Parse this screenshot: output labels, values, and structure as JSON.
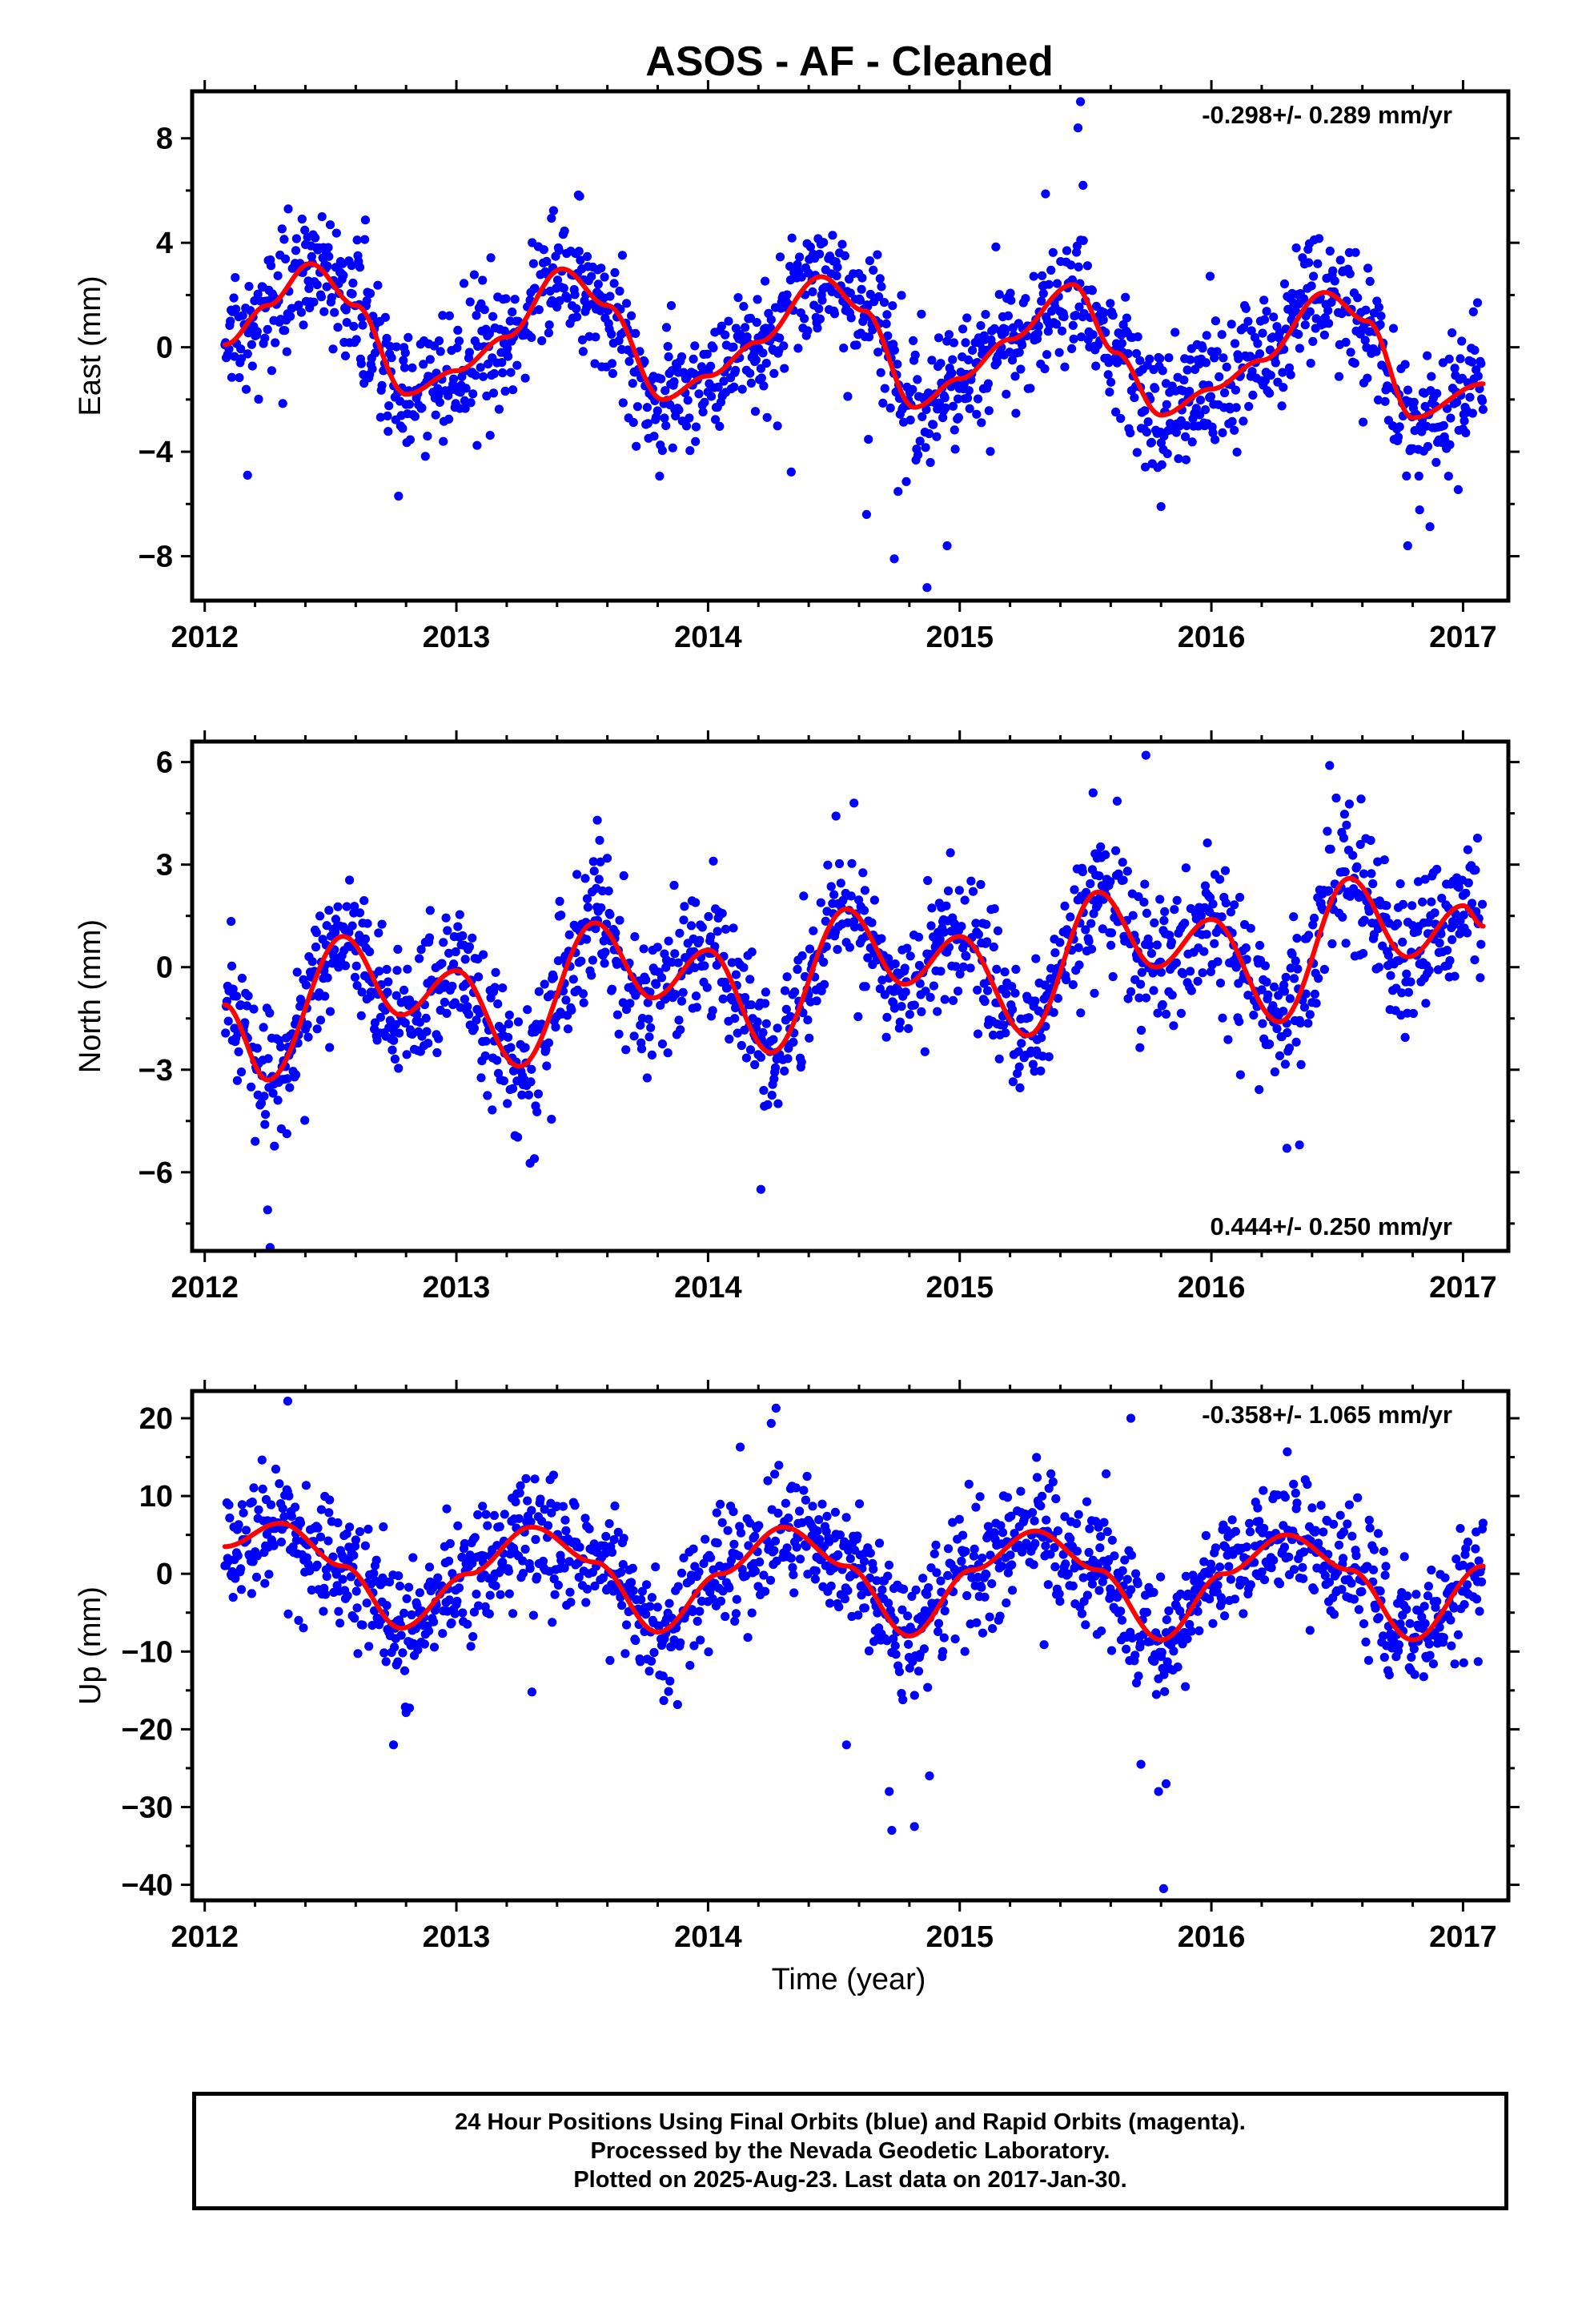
{
  "colors": {
    "points": "#0000ff",
    "fit": "#ff0000",
    "frame": "#000000"
  },
  "footer": {
    "line1": "24 Hour Positions Using Final Orbits (blue) and Rapid Orbits (magenta).",
    "line2": "Processed by the Nevada Geodetic Laboratory.",
    "line3": "Plotted on 2025-Aug-23. Last data on 2017-Jan-30."
  },
  "chart_data": [
    {
      "type": "scatter",
      "title": "ASOS  - AF - Cleaned",
      "xlabel": "",
      "ylabel": "East (mm)",
      "xlim": [
        2011.95,
        2017.18
      ],
      "ylim": [
        -9.7,
        9.8
      ],
      "xticks": [
        2012,
        2013,
        2014,
        2015,
        2016,
        2017
      ],
      "yticks": [
        -8,
        -4,
        0,
        4,
        8
      ],
      "annotation": "-0.298+/- 0.289 mm/yr",
      "annotation_position": "top-right",
      "rate_mm_per_yr": -0.298,
      "data_range": [
        2012.08,
        2017.08
      ],
      "scatter_sd": 1.2,
      "fit_curve": {
        "x": [
          2012.08,
          2012.25,
          2012.42,
          2012.6,
          2012.8,
          2013.0,
          2013.2,
          2013.42,
          2013.6,
          2013.82,
          2014.0,
          2014.2,
          2014.45,
          2014.62,
          2014.82,
          2015.0,
          2015.2,
          2015.45,
          2015.62,
          2015.8,
          2016.0,
          2016.2,
          2016.45,
          2016.62,
          2016.8,
          2017.08
        ],
        "y": [
          0.1,
          1.6,
          3.2,
          1.6,
          -1.8,
          -0.9,
          0.4,
          3.0,
          1.6,
          -2.0,
          -1.1,
          0.2,
          2.7,
          1.4,
          -2.3,
          -1.2,
          0.3,
          2.4,
          -0.2,
          -2.6,
          -1.6,
          -0.5,
          2.1,
          1.0,
          -2.7,
          -1.4
        ]
      },
      "outliers": [
        {
          "x": 2015.48,
          "y": 9.4
        },
        {
          "x": 2015.47,
          "y": 8.4
        },
        {
          "x": 2014.87,
          "y": -9.2
        },
        {
          "x": 2014.74,
          "y": -8.1
        },
        {
          "x": 2014.95,
          "y": -7.6
        },
        {
          "x": 2015.8,
          "y": -6.1
        },
        {
          "x": 2012.17,
          "y": -4.9
        },
        {
          "x": 2012.77,
          "y": -5.7
        },
        {
          "x": 2016.78,
          "y": -7.6
        },
        {
          "x": 2015.49,
          "y": 6.2
        },
        {
          "x": 2014.63,
          "y": -6.4
        }
      ]
    },
    {
      "type": "scatter",
      "title": "",
      "xlabel": "",
      "ylabel": "North (mm)",
      "xlim": [
        2011.95,
        2017.18
      ],
      "ylim": [
        -8.3,
        6.6
      ],
      "xticks": [
        2012,
        2013,
        2014,
        2015,
        2016,
        2017
      ],
      "yticks": [
        -6,
        -3,
        0,
        3,
        6
      ],
      "annotation": "0.444+/- 0.250 mm/yr",
      "annotation_position": "bottom-right",
      "rate_mm_per_yr": 0.444,
      "data_range": [
        2012.08,
        2017.08
      ],
      "scatter_sd": 1.0,
      "fit_curve": {
        "x": [
          2012.08,
          2012.25,
          2012.55,
          2012.78,
          2013.0,
          2013.25,
          2013.55,
          2013.78,
          2014.0,
          2014.25,
          2014.55,
          2014.78,
          2015.0,
          2015.27,
          2015.55,
          2015.78,
          2016.0,
          2016.27,
          2016.55,
          2016.78,
          2017.0,
          2017.08
        ],
        "y": [
          -1.1,
          -3.3,
          0.9,
          -1.4,
          -0.1,
          -2.9,
          1.3,
          -0.9,
          0.5,
          -2.5,
          1.7,
          -0.5,
          0.9,
          -2.0,
          2.2,
          0.0,
          1.4,
          -1.6,
          2.6,
          0.3,
          1.8,
          1.2
        ]
      },
      "outliers": [
        {
          "x": 2012.26,
          "y": -8.2
        },
        {
          "x": 2012.25,
          "y": -7.1
        },
        {
          "x": 2013.31,
          "y": -5.6
        },
        {
          "x": 2014.21,
          "y": -6.5
        },
        {
          "x": 2015.74,
          "y": 6.2
        },
        {
          "x": 2016.47,
          "y": 5.9
        },
        {
          "x": 2016.3,
          "y": -5.3
        },
        {
          "x": 2016.35,
          "y": -5.2
        },
        {
          "x": 2013.56,
          "y": 4.3
        },
        {
          "x": 2014.58,
          "y": 4.8
        },
        {
          "x": 2015.53,
          "y": 5.1
        }
      ]
    },
    {
      "type": "scatter",
      "title": "",
      "xlabel": "Time (year)",
      "ylabel": "Up (mm)",
      "xlim": [
        2011.95,
        2017.18
      ],
      "ylim": [
        -42,
        23.5
      ],
      "xticks": [
        2012,
        2013,
        2014,
        2015,
        2016,
        2017
      ],
      "yticks": [
        -40,
        -30,
        -20,
        -10,
        0,
        10,
        20
      ],
      "annotation": "-0.358+/- 1.065 mm/yr",
      "annotation_position": "top-right",
      "rate_mm_per_yr": -0.358,
      "data_range": [
        2012.08,
        2017.08
      ],
      "scatter_sd": 4.0,
      "fit_curve": {
        "x": [
          2012.08,
          2012.3,
          2012.55,
          2012.78,
          2013.05,
          2013.3,
          2013.55,
          2013.8,
          2014.05,
          2014.3,
          2014.55,
          2014.8,
          2015.05,
          2015.3,
          2015.55,
          2015.8,
          2016.05,
          2016.3,
          2016.55,
          2016.8,
          2017.08
        ],
        "y": [
          3.5,
          6.5,
          1.0,
          -7.0,
          0.0,
          6.0,
          1.5,
          -7.5,
          0.0,
          6.0,
          1.0,
          -8.0,
          0.5,
          5.5,
          0.5,
          -8.5,
          0.0,
          5.0,
          0.5,
          -8.5,
          1.0
        ]
      },
      "outliers": [
        {
          "x": 2015.81,
          "y": -40.5
        },
        {
          "x": 2014.73,
          "y": -33.0
        },
        {
          "x": 2014.82,
          "y": -32.5
        },
        {
          "x": 2015.72,
          "y": -24.5
        },
        {
          "x": 2015.79,
          "y": -28.0
        },
        {
          "x": 2015.82,
          "y": -27.0
        },
        {
          "x": 2012.75,
          "y": -22.0
        },
        {
          "x": 2014.55,
          "y": -22.0
        },
        {
          "x": 2015.68,
          "y": 20.0
        },
        {
          "x": 2014.27,
          "y": 21.3
        },
        {
          "x": 2012.33,
          "y": 22.2
        },
        {
          "x": 2013.3,
          "y": -15.2
        },
        {
          "x": 2014.88,
          "y": -26.0
        },
        {
          "x": 2014.72,
          "y": -28.0
        }
      ]
    }
  ]
}
